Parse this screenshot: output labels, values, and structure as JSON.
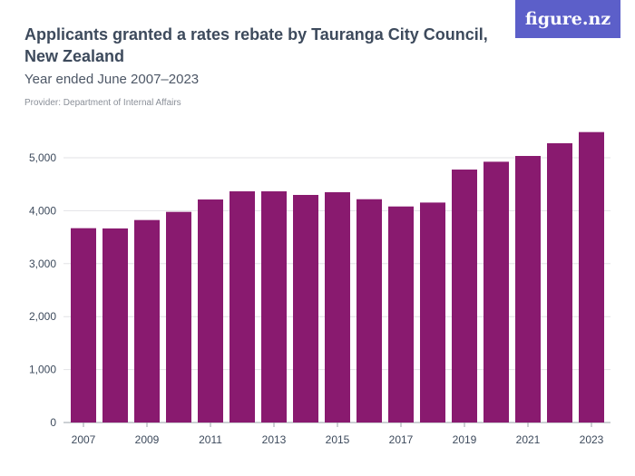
{
  "header": {
    "title": "Applicants granted a rates rebate by Tauranga City Council, New Zealand",
    "subtitle": "Year ended June 2007–2023",
    "provider": "Provider: Department of Internal Affairs",
    "logo": "figure.nz"
  },
  "colors": {
    "bar": "#891a6f",
    "grid": "#e2e2e6",
    "logo_bg": "#5c5fc9"
  },
  "chart_data": {
    "type": "bar",
    "title": "Applicants granted a rates rebate by Tauranga City Council, New Zealand",
    "subtitle": "Year ended June 2007–2023",
    "categories": [
      "2007",
      "2008",
      "2009",
      "2010",
      "2011",
      "2012",
      "2013",
      "2014",
      "2015",
      "2016",
      "2017",
      "2018",
      "2019",
      "2020",
      "2021",
      "2022",
      "2023"
    ],
    "values": [
      3670,
      3665,
      3824,
      3978,
      4212,
      4366,
      4366,
      4298,
      4349,
      4217,
      4080,
      4154,
      4777,
      4925,
      5034,
      5274,
      5485
    ],
    "xtick_labels": [
      "2007",
      "2009",
      "2011",
      "2013",
      "2015",
      "2017",
      "2019",
      "2021",
      "2023"
    ],
    "ytick_labels": [
      "0",
      "1,000",
      "2,000",
      "3,000",
      "4,000",
      "5,000"
    ],
    "yticks": [
      0,
      1000,
      2000,
      3000,
      4000,
      5000
    ],
    "ylim": [
      0,
      5600
    ],
    "grid": true,
    "xlabel": "",
    "ylabel": ""
  }
}
